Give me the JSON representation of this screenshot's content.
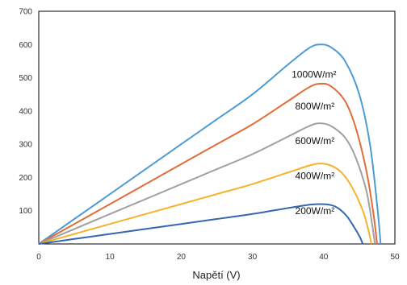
{
  "chart_data": {
    "type": "line",
    "title": "",
    "xlabel": "Napětí (V)",
    "ylabel": "",
    "xlim": [
      0,
      50
    ],
    "ylim": [
      0,
      700
    ],
    "xticks": [
      0,
      10,
      20,
      30,
      40,
      50
    ],
    "yticks": [
      100,
      200,
      300,
      400,
      500,
      600,
      700
    ],
    "grid": false,
    "series": [
      {
        "name": "1000W/m²",
        "color": "#4e9bd3",
        "x": [
          0,
          5,
          10,
          15,
          20,
          25,
          30,
          35,
          38,
          39.5,
          41,
          43,
          45,
          46.5,
          47.5,
          48
        ],
        "y": [
          0,
          75,
          150,
          225,
          300,
          375,
          450,
          540,
          590,
          600,
          592,
          550,
          450,
          300,
          120,
          0
        ]
      },
      {
        "name": "800W/m²",
        "color": "#e06c3a",
        "x": [
          0,
          5,
          10,
          15,
          20,
          25,
          30,
          35,
          38,
          39.5,
          41,
          43,
          44.5,
          46,
          47,
          47.5
        ],
        "y": [
          0,
          60,
          120,
          180,
          240,
          300,
          360,
          430,
          472,
          482,
          475,
          430,
          350,
          220,
          90,
          0
        ]
      },
      {
        "name": "600W/m²",
        "color": "#a0a0a0",
        "x": [
          0,
          5,
          10,
          15,
          20,
          25,
          30,
          35,
          38,
          39.5,
          41,
          43,
          44.5,
          46,
          46.8,
          47.2
        ],
        "y": [
          0,
          45,
          90,
          135,
          180,
          225,
          270,
          323,
          355,
          363,
          355,
          320,
          260,
          160,
          60,
          0
        ]
      },
      {
        "name": "400W/m²",
        "color": "#f5b32b",
        "x": [
          0,
          5,
          10,
          15,
          20,
          25,
          30,
          35,
          38,
          39.5,
          41,
          42.5,
          44,
          45.5,
          46.3,
          46.7
        ],
        "y": [
          0,
          30,
          60,
          90,
          120,
          150,
          180,
          215,
          236,
          242,
          236,
          215,
          170,
          100,
          40,
          0
        ]
      },
      {
        "name": "200W/m²",
        "color": "#3566b0",
        "x": [
          0,
          5,
          10,
          15,
          20,
          25,
          30,
          35,
          38,
          39.5,
          41,
          42,
          43.2,
          44.3,
          45.1,
          45.5
        ],
        "y": [
          0,
          15,
          30,
          45,
          60,
          75,
          90,
          108,
          118,
          120,
          117,
          108,
          85,
          50,
          20,
          0
        ]
      }
    ],
    "annotations": [
      {
        "text": "1000W/m²",
        "x": 35.5,
        "y": 500
      },
      {
        "text": "800W/m²",
        "x": 36.0,
        "y": 405
      },
      {
        "text": "600W/m²",
        "x": 36.0,
        "y": 300
      },
      {
        "text": "400W/m²",
        "x": 36.0,
        "y": 195
      },
      {
        "text": "200W/m²",
        "x": 36.0,
        "y": 90
      }
    ]
  }
}
